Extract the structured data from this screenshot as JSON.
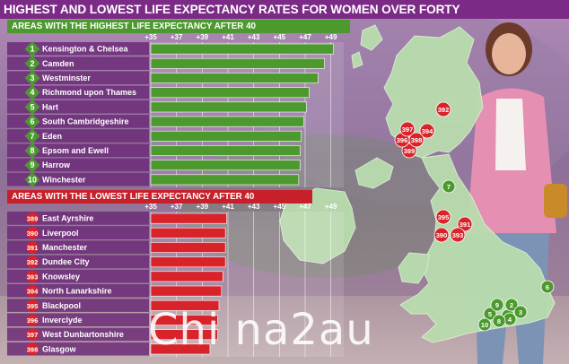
{
  "title": "HIGHEST AND LOWEST LIFE EXPECTANCY RATES FOR WOMEN OVER FORTY",
  "watermark": "Chi na2au",
  "colors": {
    "green": "#4c9a2e",
    "red": "#d8232a",
    "purple": "#7b2a86"
  },
  "chart_data": [
    {
      "type": "bar",
      "orientation": "horizontal",
      "title": "AREAS WITH THE HIGHEST LIFE EXPECTANCY AFTER 40",
      "ranks": [
        "1",
        "2",
        "3",
        "4",
        "5",
        "6",
        "7",
        "8",
        "9",
        "10"
      ],
      "categories": [
        "Kensington & Chelsea",
        "Camden",
        "Westminster",
        "Richmond upon Thames",
        "Hart",
        "South Cambridgeshire",
        "Eden",
        "Epsom and Ewell",
        "Harrow",
        "Winchester"
      ],
      "values": [
        49.2,
        48.5,
        48.0,
        47.3,
        47.1,
        46.9,
        46.7,
        46.6,
        46.6,
        46.5
      ],
      "xlim": [
        35,
        50
      ],
      "ticks": [
        "+35",
        "+37",
        "+39",
        "+41",
        "+43",
        "+45",
        "+47",
        "+49"
      ],
      "color": "#4c9a2e"
    },
    {
      "type": "bar",
      "orientation": "horizontal",
      "title": "AREAS WITH THE LOWEST LIFE EXPECTANCY AFTER 40",
      "ranks": [
        "389",
        "390",
        "391",
        "392",
        "393",
        "394",
        "395",
        "396",
        "397",
        "398"
      ],
      "categories": [
        "East Ayrshire",
        "Liverpool",
        "Manchester",
        "Dundee City",
        "Knowsley",
        "North Lanarkshire",
        "Blackpool",
        "Inverclyde",
        "West Dunbartonshire",
        "Glasgow"
      ],
      "values": [
        40.9,
        40.8,
        40.8,
        40.8,
        40.6,
        40.5,
        40.3,
        40.2,
        40.2,
        39.6
      ],
      "xlim": [
        35,
        50
      ],
      "ticks": [
        "+35",
        "+37",
        "+39",
        "+41",
        "+43",
        "+45",
        "+47",
        "+49"
      ],
      "color": "#d8232a"
    }
  ],
  "map_markers": {
    "green": [
      "1",
      "2",
      "3",
      "4",
      "5",
      "6",
      "7",
      "8",
      "9",
      "10"
    ],
    "red": [
      "389",
      "390",
      "391",
      "392",
      "393",
      "394",
      "395",
      "396",
      "397",
      "398"
    ]
  }
}
